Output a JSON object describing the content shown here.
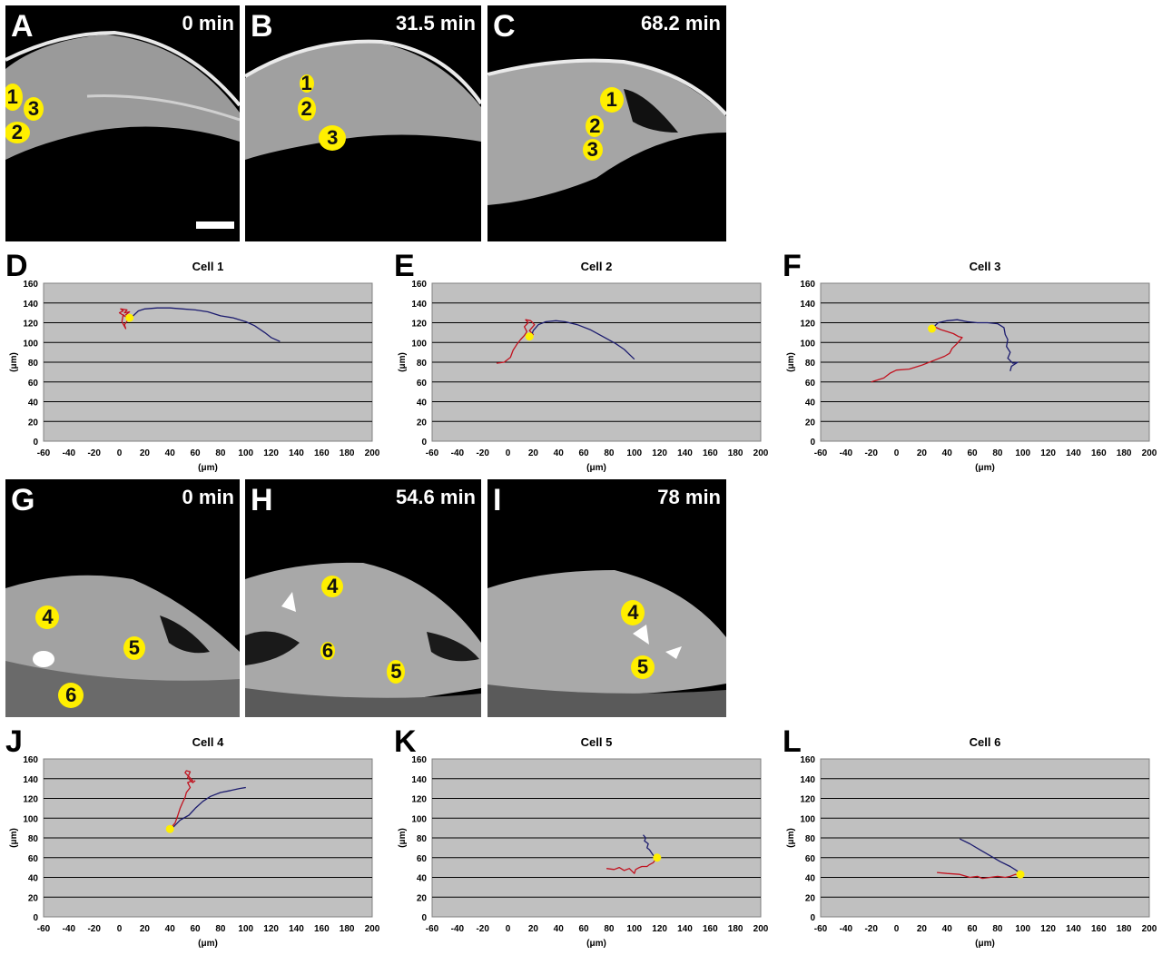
{
  "figure": {
    "top_row": [
      {
        "letter": "A",
        "time": "0 min",
        "cells": [
          {
            "label": "1",
            "u": 0.03,
            "v": 0.39,
            "w": 22,
            "h": 30
          },
          {
            "label": "3",
            "u": 0.12,
            "v": 0.44,
            "w": 22,
            "h": 26
          },
          {
            "label": "2",
            "u": 0.05,
            "v": 0.54,
            "w": 28,
            "h": 24
          }
        ]
      },
      {
        "letter": "B",
        "time": "31.5 min",
        "cells": [
          {
            "label": "1",
            "u": 0.26,
            "v": 0.33,
            "w": 16,
            "h": 20
          },
          {
            "label": "2",
            "u": 0.26,
            "v": 0.44,
            "w": 20,
            "h": 26
          },
          {
            "label": "3",
            "u": 0.37,
            "v": 0.56,
            "w": 30,
            "h": 28
          }
        ]
      },
      {
        "letter": "C",
        "time": "68.2 min",
        "cells": [
          {
            "label": "1",
            "u": 0.52,
            "v": 0.4,
            "w": 26,
            "h": 28
          },
          {
            "label": "2",
            "u": 0.45,
            "v": 0.51,
            "w": 20,
            "h": 24
          },
          {
            "label": "3",
            "u": 0.44,
            "v": 0.61,
            "w": 22,
            "h": 24
          }
        ]
      }
    ],
    "bottom_row": [
      {
        "letter": "G",
        "time": "0 min",
        "cells": [
          {
            "label": "4",
            "u": 0.18,
            "v": 0.58,
            "w": 26,
            "h": 26
          },
          {
            "label": "5",
            "u": 0.55,
            "v": 0.71,
            "w": 24,
            "h": 26
          },
          {
            "label": "6",
            "u": 0.28,
            "v": 0.91,
            "w": 28,
            "h": 28
          }
        ]
      },
      {
        "letter": "H",
        "time": "54.6 min",
        "cells": [
          {
            "label": "4",
            "u": 0.37,
            "v": 0.45,
            "w": 24,
            "h": 24
          },
          {
            "label": "6",
            "u": 0.35,
            "v": 0.72,
            "w": 16,
            "h": 20
          },
          {
            "label": "5",
            "u": 0.64,
            "v": 0.81,
            "w": 20,
            "h": 26
          }
        ]
      },
      {
        "letter": "I",
        "time": "78 min",
        "cells": [
          {
            "label": "4",
            "u": 0.61,
            "v": 0.56,
            "w": 26,
            "h": 28
          },
          {
            "label": "5",
            "u": 0.65,
            "v": 0.79,
            "w": 26,
            "h": 26
          }
        ]
      }
    ]
  },
  "chart_data": [
    {
      "type": "line",
      "letter": "D",
      "title": "Cell 1",
      "xlabel": "(μm)",
      "ylabel": "(μm)",
      "xlim": [
        -60,
        200
      ],
      "ylim": [
        0,
        160
      ],
      "xticks": [
        "-60",
        "-40",
        "-20",
        "0",
        "20",
        "40",
        "60",
        "80",
        "100",
        "120",
        "140",
        "160",
        "180",
        "200"
      ],
      "yticks": [
        "0",
        "20",
        "40",
        "60",
        "80",
        "100",
        "120",
        "140",
        "160"
      ],
      "grid": "horizontal",
      "series": [
        {
          "color": "#c1121f",
          "points": [
            [
              8,
              125
            ],
            [
              4,
              118
            ],
            [
              5,
              114
            ],
            [
              2,
              121
            ],
            [
              3,
              128
            ],
            [
              5,
              126
            ],
            [
              0,
              130
            ],
            [
              3,
              132
            ],
            [
              1,
              134
            ],
            [
              6,
              133
            ],
            [
              4,
              130
            ],
            [
              8,
              131
            ],
            [
              5,
              128
            ],
            [
              10,
              126
            ]
          ]
        },
        {
          "color": "#1b1b6e",
          "points": [
            [
              10,
              126
            ],
            [
              15,
              132
            ],
            [
              20,
              134
            ],
            [
              30,
              135
            ],
            [
              40,
              135
            ],
            [
              50,
              134
            ],
            [
              60,
              133
            ],
            [
              70,
              131
            ],
            [
              80,
              127
            ],
            [
              90,
              125
            ],
            [
              100,
              121
            ],
            [
              107,
              117
            ],
            [
              115,
              110
            ],
            [
              120,
              105
            ],
            [
              127,
              101
            ]
          ]
        }
      ],
      "start": [
        8,
        125
      ]
    },
    {
      "type": "line",
      "letter": "E",
      "title": "Cell 2",
      "xlabel": "(μm)",
      "ylabel": "(μm)",
      "xlim": [
        -60,
        200
      ],
      "ylim": [
        0,
        160
      ],
      "xticks": [
        "-60",
        "-40",
        "-20",
        "0",
        "20",
        "40",
        "60",
        "80",
        "100",
        "120",
        "140",
        "160",
        "180",
        "200"
      ],
      "yticks": [
        "0",
        "20",
        "40",
        "60",
        "80",
        "100",
        "120",
        "140",
        "160"
      ],
      "grid": "horizontal",
      "series": [
        {
          "color": "#c1121f",
          "points": [
            [
              -9,
              79
            ],
            [
              -3,
              80
            ],
            [
              2,
              85
            ],
            [
              4,
              92
            ],
            [
              7,
              98
            ],
            [
              10,
              103
            ],
            [
              13,
              107
            ],
            [
              15,
              111
            ],
            [
              13,
              116
            ],
            [
              16,
              120
            ],
            [
              14,
              123
            ],
            [
              18,
              122
            ],
            [
              21,
              118
            ],
            [
              17,
              112
            ],
            [
              20,
              108
            ],
            [
              18,
              105
            ]
          ]
        },
        {
          "color": "#1b1b6e",
          "points": [
            [
              18,
              105
            ],
            [
              20,
              112
            ],
            [
              24,
              118
            ],
            [
              30,
              121
            ],
            [
              38,
              122
            ],
            [
              45,
              121
            ],
            [
              55,
              118
            ],
            [
              65,
              113
            ],
            [
              75,
              106
            ],
            [
              85,
              99
            ],
            [
              92,
              93
            ],
            [
              96,
              88
            ],
            [
              100,
              83
            ]
          ]
        }
      ],
      "start": [
        17,
        106
      ]
    },
    {
      "type": "line",
      "letter": "F",
      "title": "Cell 3",
      "xlabel": "(μm)",
      "ylabel": "(μm)",
      "xlim": [
        -60,
        200
      ],
      "ylim": [
        0,
        160
      ],
      "xticks": [
        "-60",
        "-40",
        "-20",
        "0",
        "20",
        "40",
        "60",
        "80",
        "100",
        "120",
        "140",
        "160",
        "180",
        "200"
      ],
      "yticks": [
        "0",
        "20",
        "40",
        "60",
        "80",
        "100",
        "120",
        "140",
        "160"
      ],
      "grid": "horizontal",
      "series": [
        {
          "color": "#c1121f",
          "points": [
            [
              -20,
              60
            ],
            [
              -10,
              64
            ],
            [
              -5,
              69
            ],
            [
              0,
              72
            ],
            [
              10,
              73
            ],
            [
              20,
              77
            ],
            [
              30,
              82
            ],
            [
              38,
              86
            ],
            [
              42,
              89
            ],
            [
              44,
              94
            ],
            [
              48,
              99
            ],
            [
              52,
              105
            ],
            [
              49,
              106
            ],
            [
              45,
              109
            ],
            [
              40,
              111
            ],
            [
              35,
              113
            ],
            [
              30,
              116
            ],
            [
              28,
              114
            ]
          ]
        },
        {
          "color": "#1b1b6e",
          "points": [
            [
              28,
              114
            ],
            [
              33,
              120
            ],
            [
              40,
              122
            ],
            [
              48,
              123
            ],
            [
              56,
              121
            ],
            [
              64,
              120
            ],
            [
              72,
              120
            ],
            [
              80,
              119
            ],
            [
              85,
              115
            ],
            [
              86,
              108
            ],
            [
              88,
              103
            ],
            [
              87,
              96
            ],
            [
              90,
              90
            ],
            [
              88,
              84
            ],
            [
              92,
              79
            ],
            [
              96,
              80
            ],
            [
              91,
              76
            ],
            [
              90,
              71
            ]
          ]
        }
      ],
      "start": [
        28,
        114
      ]
    },
    {
      "type": "line",
      "letter": "J",
      "title": "Cell 4",
      "xlabel": "(μm)",
      "ylabel": "(μm)",
      "xlim": [
        -60,
        200
      ],
      "ylim": [
        0,
        160
      ],
      "xticks": [
        "-60",
        "-40",
        "-20",
        "0",
        "20",
        "40",
        "60",
        "80",
        "100",
        "120",
        "140",
        "160",
        "180",
        "200"
      ],
      "yticks": [
        "0",
        "20",
        "40",
        "60",
        "80",
        "100",
        "120",
        "140",
        "160"
      ],
      "grid": "horizontal",
      "series": [
        {
          "color": "#c1121f",
          "points": [
            [
              40,
              89
            ],
            [
              44,
              95
            ],
            [
              46,
              102
            ],
            [
              48,
              110
            ],
            [
              50,
              116
            ],
            [
              52,
              121
            ],
            [
              53,
              126
            ],
            [
              56,
              131
            ],
            [
              54,
              136
            ],
            [
              58,
              138
            ],
            [
              55,
              142
            ],
            [
              52,
              146
            ],
            [
              53,
              148
            ],
            [
              56,
              147
            ],
            [
              54,
              141
            ],
            [
              58,
              136
            ],
            [
              60,
              138
            ]
          ]
        },
        {
          "color": "#1b1b6e",
          "points": [
            [
              42,
              90
            ],
            [
              48,
              98
            ],
            [
              55,
              103
            ],
            [
              60,
              110
            ],
            [
              66,
              117
            ],
            [
              72,
              122
            ],
            [
              80,
              126
            ],
            [
              88,
              128
            ],
            [
              95,
              130
            ],
            [
              100,
              131
            ]
          ]
        }
      ],
      "start": [
        40,
        89
      ]
    },
    {
      "type": "line",
      "letter": "K",
      "title": "Cell 5",
      "xlabel": "(μm)",
      "ylabel": "(μm)",
      "xlim": [
        -60,
        200
      ],
      "ylim": [
        0,
        160
      ],
      "xticks": [
        "-60",
        "-40",
        "-20",
        "0",
        "20",
        "40",
        "60",
        "80",
        "100",
        "120",
        "140",
        "160",
        "180",
        "200"
      ],
      "yticks": [
        "0",
        "20",
        "40",
        "60",
        "80",
        "100",
        "120",
        "140",
        "160"
      ],
      "grid": "horizontal",
      "series": [
        {
          "color": "#c1121f",
          "points": [
            [
              78,
              49
            ],
            [
              84,
              48
            ],
            [
              88,
              50
            ],
            [
              92,
              47
            ],
            [
              96,
              49
            ],
            [
              100,
              44
            ],
            [
              101,
              48
            ],
            [
              104,
              50
            ],
            [
              106,
              51
            ],
            [
              110,
              51
            ],
            [
              112,
              53
            ],
            [
              115,
              55
            ],
            [
              117,
              59
            ]
          ]
        },
        {
          "color": "#1b1b6e",
          "points": [
            [
              117,
              59
            ],
            [
              114,
              64
            ],
            [
              112,
              68
            ],
            [
              110,
              70
            ],
            [
              111,
              74
            ],
            [
              108,
              77
            ],
            [
              109,
              80
            ],
            [
              107,
              83
            ]
          ]
        }
      ],
      "start": [
        118,
        60
      ]
    },
    {
      "type": "line",
      "letter": "L",
      "title": "Cell 6",
      "xlabel": "(μm)",
      "ylabel": "(μm)",
      "xlim": [
        -60,
        200
      ],
      "ylim": [
        0,
        160
      ],
      "xticks": [
        "-60",
        "-40",
        "-20",
        "0",
        "20",
        "40",
        "60",
        "80",
        "100",
        "120",
        "140",
        "160",
        "180",
        "200"
      ],
      "yticks": [
        "0",
        "20",
        "40",
        "60",
        "80",
        "100",
        "120",
        "140",
        "160"
      ],
      "grid": "horizontal",
      "series": [
        {
          "color": "#c1121f",
          "points": [
            [
              32,
              45
            ],
            [
              40,
              44
            ],
            [
              50,
              43
            ],
            [
              58,
              40
            ],
            [
              64,
              41
            ],
            [
              68,
              39
            ],
            [
              74,
              40
            ],
            [
              80,
              41
            ],
            [
              86,
              40
            ],
            [
              90,
              41
            ],
            [
              94,
              43
            ],
            [
              98,
              42
            ]
          ]
        },
        {
          "color": "#1b1b6e",
          "points": [
            [
              50,
              79
            ],
            [
              58,
              74
            ],
            [
              66,
              68
            ],
            [
              74,
              62
            ],
            [
              82,
              56
            ],
            [
              90,
              51
            ],
            [
              95,
              47
            ],
            [
              98,
              43
            ]
          ]
        }
      ],
      "start": [
        98,
        43
      ]
    }
  ]
}
